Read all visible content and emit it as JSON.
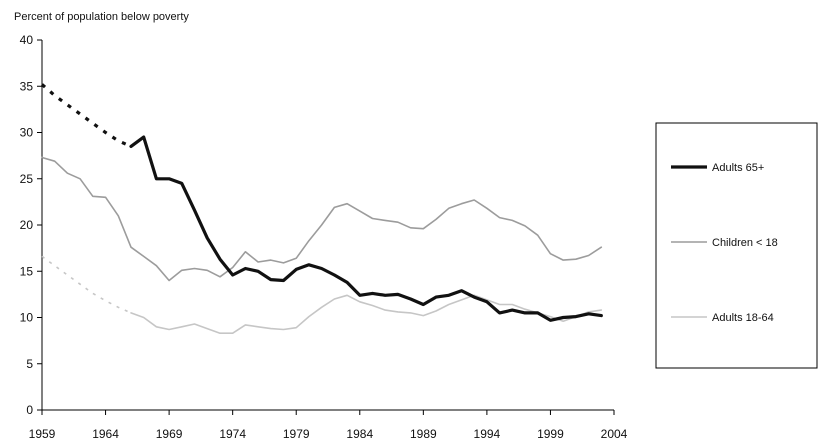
{
  "chart_data": {
    "type": "line",
    "ylabel": "Percent of population below poverty",
    "xlabel": "",
    "xlim": [
      1959,
      2004
    ],
    "ylim": [
      0,
      40
    ],
    "x_ticks": [
      1959,
      1964,
      1969,
      1974,
      1979,
      1984,
      1989,
      1994,
      1999,
      2004
    ],
    "y_ticks": [
      0,
      5,
      10,
      15,
      20,
      25,
      30,
      35,
      40
    ],
    "grid": false,
    "legend_position": "right",
    "series": [
      {
        "name": "Adults 65+",
        "color": "#111111",
        "width": 3.2,
        "estimated_x": [
          1959,
          1960,
          1961,
          1962,
          1963,
          1964,
          1965,
          1966
        ],
        "estimated_y": [
          35.2,
          34.0,
          33.0,
          32.0,
          31.0,
          30.0,
          29.1,
          28.5
        ],
        "x": [
          1966,
          1967,
          1968,
          1969,
          1970,
          1971,
          1972,
          1973,
          1974,
          1975,
          1976,
          1977,
          1978,
          1979,
          1980,
          1981,
          1982,
          1983,
          1984,
          1985,
          1986,
          1987,
          1988,
          1989,
          1990,
          1991,
          1992,
          1993,
          1994,
          1995,
          1996,
          1997,
          1998,
          1999,
          2000,
          2001,
          2002,
          2003
        ],
        "y": [
          28.5,
          29.5,
          25.0,
          25.0,
          24.5,
          21.6,
          18.6,
          16.3,
          14.6,
          15.3,
          15.0,
          14.1,
          14.0,
          15.2,
          15.7,
          15.3,
          14.6,
          13.8,
          12.4,
          12.6,
          12.4,
          12.5,
          12.0,
          11.4,
          12.2,
          12.4,
          12.9,
          12.2,
          11.7,
          10.5,
          10.8,
          10.5,
          10.5,
          9.7,
          10.0,
          10.1,
          10.4,
          10.2
        ]
      },
      {
        "name": "Children < 18",
        "color": "#9c9c9c",
        "width": 1.6,
        "x": [
          1959,
          1960,
          1961,
          1962,
          1963,
          1964,
          1965,
          1966,
          1967,
          1968,
          1969,
          1970,
          1971,
          1972,
          1973,
          1974,
          1975,
          1976,
          1977,
          1978,
          1979,
          1980,
          1981,
          1982,
          1983,
          1984,
          1985,
          1986,
          1987,
          1988,
          1989,
          1990,
          1991,
          1992,
          1993,
          1994,
          1995,
          1996,
          1997,
          1998,
          1999,
          2000,
          2001,
          2002,
          2003
        ],
        "y": [
          27.3,
          26.9,
          25.6,
          25.0,
          23.1,
          23.0,
          21.0,
          17.6,
          16.6,
          15.6,
          14.0,
          15.1,
          15.3,
          15.1,
          14.4,
          15.4,
          17.1,
          16.0,
          16.2,
          15.9,
          16.4,
          18.3,
          20.0,
          21.9,
          22.3,
          21.5,
          20.7,
          20.5,
          20.3,
          19.7,
          19.6,
          20.6,
          21.8,
          22.3,
          22.7,
          21.8,
          20.8,
          20.5,
          19.9,
          18.9,
          16.9,
          16.2,
          16.3,
          16.7,
          17.6
        ]
      },
      {
        "name": "Adults 18-64",
        "color": "#c6c6c6",
        "width": 1.6,
        "estimated_x": [
          1959,
          1960,
          1961,
          1962,
          1963,
          1964,
          1965,
          1966
        ],
        "estimated_y": [
          16.6,
          15.6,
          14.6,
          13.6,
          12.6,
          11.8,
          11.1,
          10.5
        ],
        "x": [
          1966,
          1967,
          1968,
          1969,
          1970,
          1971,
          1972,
          1973,
          1974,
          1975,
          1976,
          1977,
          1978,
          1979,
          1980,
          1981,
          1982,
          1983,
          1984,
          1985,
          1986,
          1987,
          1988,
          1989,
          1990,
          1991,
          1992,
          1993,
          1994,
          1995,
          1996,
          1997,
          1998,
          1999,
          2000,
          2001,
          2002,
          2003
        ],
        "y": [
          10.5,
          10.0,
          9.0,
          8.7,
          9.0,
          9.3,
          8.8,
          8.3,
          8.3,
          9.2,
          9.0,
          8.8,
          8.7,
          8.9,
          10.1,
          11.1,
          12.0,
          12.4,
          11.7,
          11.3,
          10.8,
          10.6,
          10.5,
          10.2,
          10.7,
          11.4,
          11.9,
          12.4,
          11.9,
          11.4,
          11.4,
          10.9,
          10.5,
          10.1,
          9.6,
          10.1,
          10.6,
          10.8
        ]
      }
    ]
  }
}
